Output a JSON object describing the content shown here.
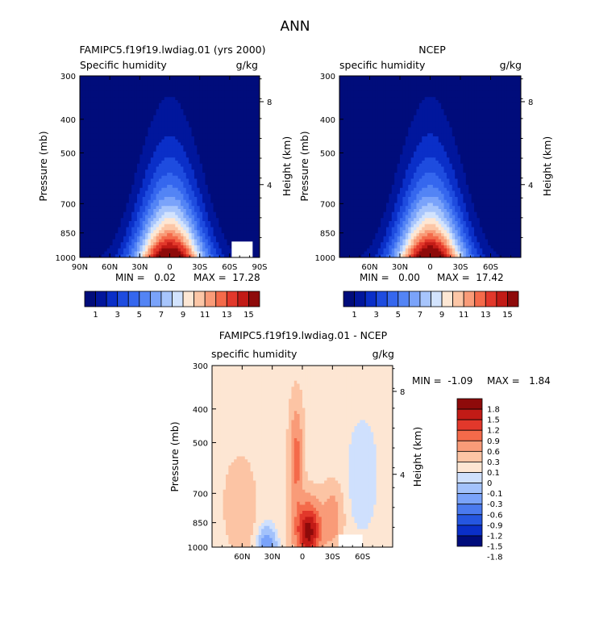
{
  "figure_title": "ANN",
  "colors": {
    "q_palette": [
      "#000c7b",
      "#01169c",
      "#0a2fc8",
      "#1e4cdf",
      "#3567ee",
      "#5384f5",
      "#7aa3fa",
      "#a7c5fc",
      "#d2e3fd",
      "#fde7d4",
      "#fcc6a6",
      "#f99b78",
      "#f46a4a",
      "#e2382b",
      "#c21b16",
      "#8e0a0a"
    ],
    "diff_palette": [
      "#000c7b",
      "#0a2fc8",
      "#2556e0",
      "#4a7aef",
      "#7aa3fa",
      "#a3c2fb",
      "#cfe0fd",
      "#fde6d3",
      "#fcc4a4",
      "#f99b78",
      "#f46a4a",
      "#e2382b",
      "#c21b16",
      "#8e0a0a"
    ],
    "diff_white": "#ffffff"
  },
  "chart_data": [
    {
      "type": "contour",
      "title": "FAMIPC5.f19f19.lwdiag.01 (yrs 2000)",
      "subtitle_left": "Specific humidity",
      "subtitle_right": "g/kg",
      "ylabel": "Pressure (mb)",
      "ylabel_right": "Height (km)",
      "x_ticks": [
        "90N",
        "60N",
        "30N",
        "0",
        "30S",
        "60S",
        "90S"
      ],
      "x_tick_lat": [
        90,
        60,
        30,
        0,
        -30,
        -60,
        -90
      ],
      "xlim": [
        90,
        -90
      ],
      "y_ticks": [
        "300",
        "400",
        "500",
        "700",
        "850",
        "1000"
      ],
      "y_tick_p": [
        300,
        400,
        500,
        700,
        850,
        1000
      ],
      "ylim": [
        300,
        1000
      ],
      "y_scale": "log",
      "height_ticks": [
        "8",
        "4"
      ],
      "height_tick_p": [
        356,
        617
      ],
      "min_label": "MIN =   0.02",
      "max_label": "MAX =  17.28",
      "min": 0.02,
      "max": 17.28,
      "peak_lat": 0,
      "colorbar_labels": [
        "1",
        "3",
        "5",
        "7",
        "9",
        "11",
        "13",
        "15"
      ],
      "colorbar_levels": [
        1,
        2,
        3,
        4,
        5,
        6,
        7,
        8,
        9,
        10,
        11,
        12,
        13,
        14,
        15
      ]
    },
    {
      "type": "contour",
      "title": "NCEP",
      "subtitle_left": "specific humidity",
      "subtitle_right": "g/kg",
      "ylabel": "Pressure (mb)",
      "ylabel_right": "Height (km)",
      "x_ticks": [
        "60N",
        "30N",
        "0",
        "30S",
        "60S"
      ],
      "x_tick_lat": [
        60,
        30,
        0,
        -30,
        -60
      ],
      "xlim": [
        90,
        -90
      ],
      "y_ticks": [
        "300",
        "400",
        "500",
        "700",
        "850",
        "1000"
      ],
      "y_tick_p": [
        300,
        400,
        500,
        700,
        850,
        1000
      ],
      "ylim": [
        300,
        1000
      ],
      "y_scale": "log",
      "height_ticks": [
        "8",
        "4"
      ],
      "height_tick_p": [
        356,
        617
      ],
      "min_label": "MIN =   0.00",
      "max_label": "MAX =  17.42",
      "min": 0.0,
      "max": 17.42,
      "peak_lat": 0,
      "colorbar_labels": [
        "1",
        "3",
        "5",
        "7",
        "9",
        "11",
        "13",
        "15"
      ],
      "colorbar_levels": [
        1,
        2,
        3,
        4,
        5,
        6,
        7,
        8,
        9,
        10,
        11,
        12,
        13,
        14,
        15
      ]
    },
    {
      "type": "contour",
      "title": "FAMIPC5.f19f19.lwdiag.01 - NCEP",
      "subtitle_left": "specific humidity",
      "subtitle_right": "g/kg",
      "ylabel": "Pressure (mb)",
      "ylabel_right": "Height (km)",
      "x_ticks": [
        "60N",
        "30N",
        "0",
        "30S",
        "60S"
      ],
      "x_tick_lat": [
        60,
        30,
        0,
        -30,
        -60
      ],
      "xlim": [
        90,
        -90
      ],
      "y_ticks": [
        "300",
        "400",
        "500",
        "700",
        "850",
        "1000"
      ],
      "y_tick_p": [
        300,
        400,
        500,
        700,
        850,
        1000
      ],
      "ylim": [
        300,
        1000
      ],
      "y_scale": "log",
      "height_ticks": [
        "8",
        "4"
      ],
      "height_tick_p": [
        356,
        617
      ],
      "min_label": "MIN =  -1.09",
      "max_label": "MAX =   1.84",
      "min": -1.09,
      "max": 1.84,
      "colorbar_labels": [
        "1.8",
        "1.5",
        "1.2",
        "0.9",
        "0.6",
        "0.3",
        "0.1",
        "0",
        "-0.1",
        "-0.3",
        "-0.6",
        "-0.9",
        "-1.2",
        "-1.5",
        "-1.8"
      ],
      "colorbar_levels": [
        -1.8,
        -1.5,
        -1.2,
        -0.9,
        -0.6,
        -0.3,
        -0.1,
        0,
        0.1,
        0.3,
        0.6,
        0.9,
        1.2,
        1.5,
        1.8
      ]
    }
  ]
}
